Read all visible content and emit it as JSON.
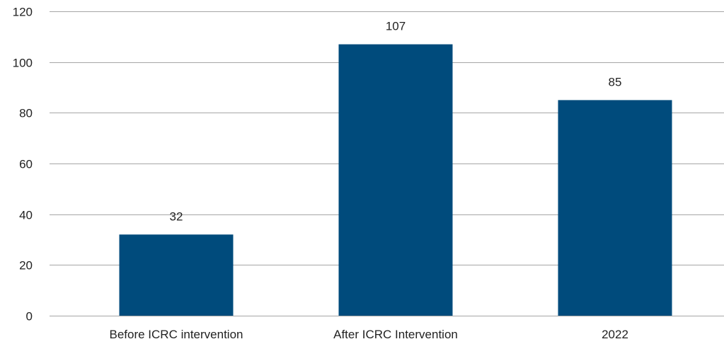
{
  "chart_data": {
    "type": "bar",
    "categories": [
      "Before ICRC intervention",
      "After ICRC Intervention",
      "2022"
    ],
    "values": [
      32,
      107,
      85
    ],
    "data_labels": [
      "32",
      "107",
      "85"
    ],
    "yticks": [
      "0",
      "20",
      "40",
      "60",
      "80",
      "100",
      "120"
    ],
    "ylim": [
      0,
      120
    ],
    "grid": true,
    "legend": "none",
    "bar_color": "#004b7c"
  }
}
